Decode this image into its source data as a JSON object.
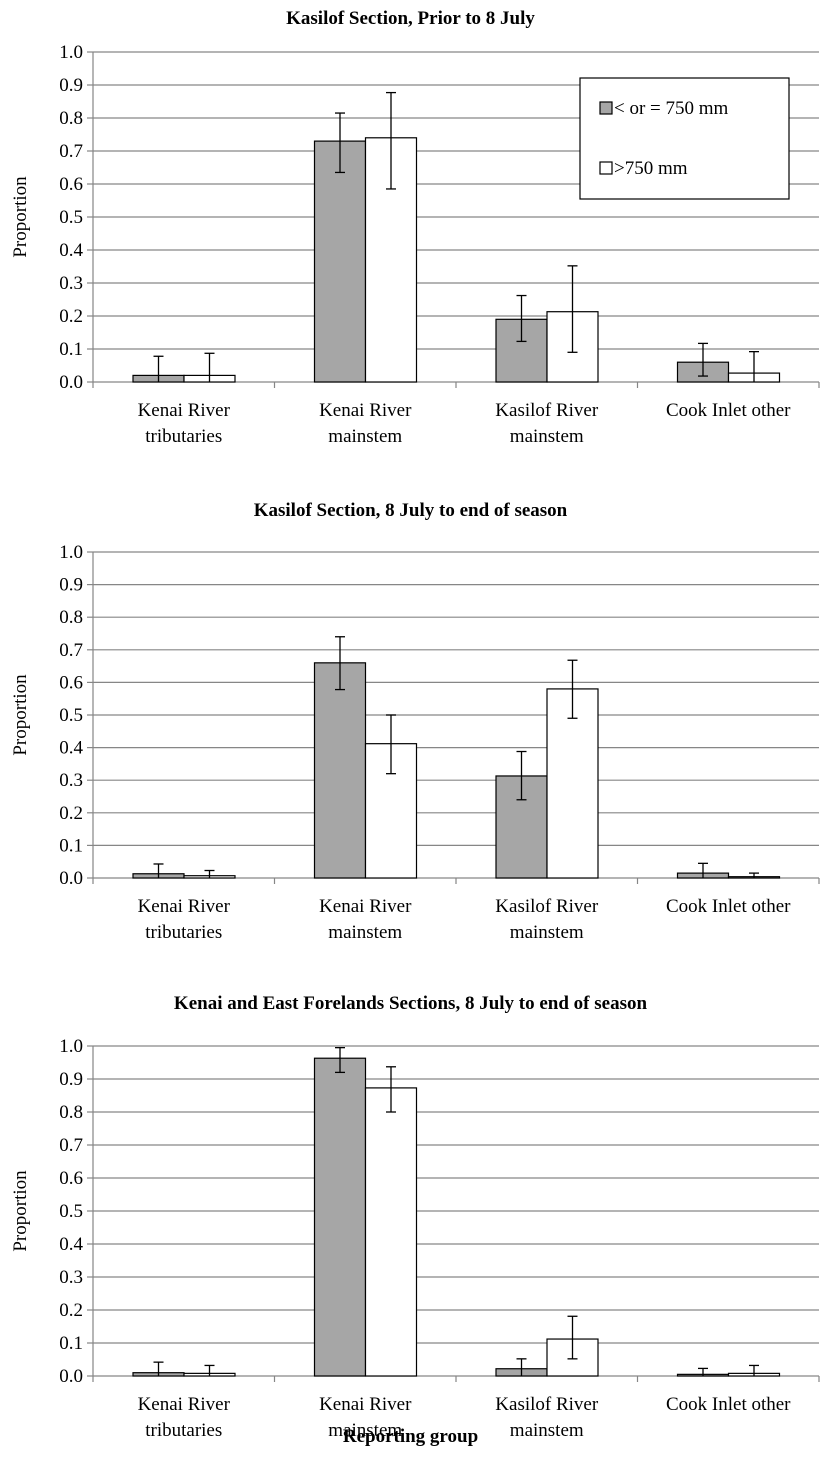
{
  "xlabel": "Reporting group",
  "chart_data": [
    {
      "type": "bar",
      "title": "Kasilof Section, Prior to 8 July",
      "ylabel": "Proportion",
      "xlabel": "Reporting group",
      "ylim": [
        0,
        1.0
      ],
      "yticks": [
        "0.0",
        "0.1",
        "0.2",
        "0.3",
        "0.4",
        "0.5",
        "0.6",
        "0.7",
        "0.8",
        "0.9",
        "1.0"
      ],
      "grid": true,
      "legend_position": "top-right",
      "categories": [
        [
          "Kenai River",
          "tributaries"
        ],
        [
          "Kenai River",
          "mainstem"
        ],
        [
          "Kasilof River",
          "mainstem"
        ],
        [
          "Cook Inlet other"
        ]
      ],
      "series": [
        {
          "name": "< or = 750 mm",
          "color": "#a6a6a6",
          "values": [
            0.02,
            0.73,
            0.19,
            0.06
          ],
          "err_low": [
            0.0,
            0.635,
            0.123,
            0.018
          ],
          "err_high": [
            0.078,
            0.815,
            0.262,
            0.117
          ]
        },
        {
          "name": ">750 mm",
          "color": "#ffffff",
          "values": [
            0.02,
            0.74,
            0.213,
            0.027
          ],
          "err_low": [
            0.0,
            0.585,
            0.09,
            0.0
          ],
          "err_high": [
            0.087,
            0.877,
            0.352,
            0.092
          ]
        }
      ]
    },
    {
      "type": "bar",
      "title": "Kasilof Section, 8 July to end of season",
      "ylabel": "Proportion",
      "xlabel": "Reporting group",
      "ylim": [
        0,
        1.0
      ],
      "yticks": [
        "0.0",
        "0.1",
        "0.2",
        "0.3",
        "0.4",
        "0.5",
        "0.6",
        "0.7",
        "0.8",
        "0.9",
        "1.0"
      ],
      "grid": true,
      "categories": [
        [
          "Kenai River",
          "tributaries"
        ],
        [
          "Kenai River",
          "mainstem"
        ],
        [
          "Kasilof River",
          "mainstem"
        ],
        [
          "Cook Inlet other"
        ]
      ],
      "series": [
        {
          "name": "< or = 750 mm",
          "color": "#a6a6a6",
          "values": [
            0.013,
            0.66,
            0.313,
            0.015
          ],
          "err_low": [
            0.0,
            0.578,
            0.24,
            0.0
          ],
          "err_high": [
            0.043,
            0.74,
            0.388,
            0.045
          ]
        },
        {
          "name": ">750 mm",
          "color": "#ffffff",
          "values": [
            0.007,
            0.412,
            0.58,
            0.004
          ],
          "err_low": [
            0.0,
            0.32,
            0.49,
            0.0
          ],
          "err_high": [
            0.023,
            0.5,
            0.668,
            0.015
          ]
        }
      ]
    },
    {
      "type": "bar",
      "title": "Kenai and East Forelands Sections, 8 July to end of season",
      "ylabel": "Proportion",
      "xlabel": "Reporting group",
      "ylim": [
        0,
        1.0
      ],
      "yticks": [
        "0.0",
        "0.1",
        "0.2",
        "0.3",
        "0.4",
        "0.5",
        "0.6",
        "0.7",
        "0.8",
        "0.9",
        "1.0"
      ],
      "grid": true,
      "categories": [
        [
          "Kenai River",
          "tributaries"
        ],
        [
          "Kenai River",
          "mainstem"
        ],
        [
          "Kasilof River",
          "mainstem"
        ],
        [
          "Cook Inlet other"
        ]
      ],
      "series": [
        {
          "name": "< or = 750 mm",
          "color": "#a6a6a6",
          "values": [
            0.01,
            0.963,
            0.022,
            0.005
          ],
          "err_low": [
            0.0,
            0.92,
            0.0,
            0.0
          ],
          "err_high": [
            0.042,
            0.995,
            0.052,
            0.023
          ]
        },
        {
          "name": ">750 mm",
          "color": "#ffffff",
          "values": [
            0.008,
            0.873,
            0.112,
            0.008
          ],
          "err_low": [
            0.0,
            0.8,
            0.052,
            0.0
          ],
          "err_high": [
            0.032,
            0.937,
            0.181,
            0.032
          ]
        }
      ]
    }
  ]
}
